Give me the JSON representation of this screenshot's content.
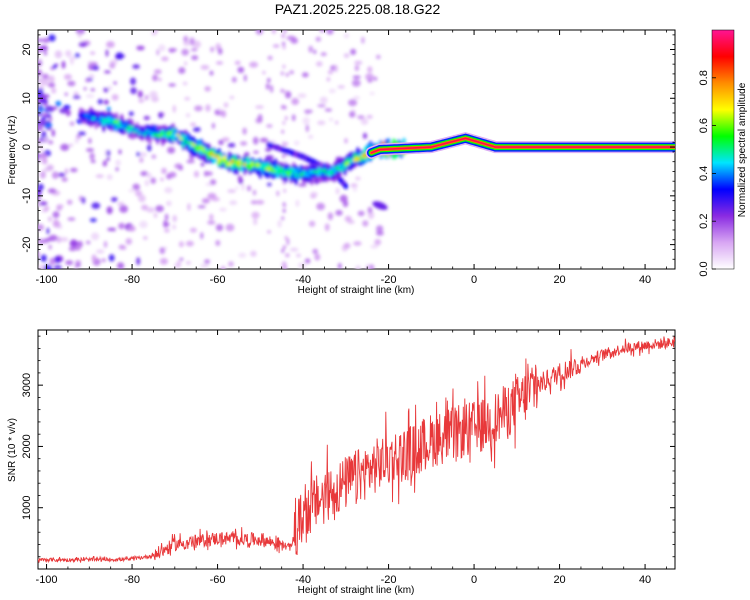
{
  "title": "PAZ1.2025.225.08.18.G22",
  "chart_data": [
    {
      "type": "heatmap",
      "xlabel": "Height of straight line (km)",
      "ylabel": "Frequency (Hz)",
      "xlim": [
        -102,
        47
      ],
      "ylim": [
        -25,
        24
      ],
      "xticks": [
        -100,
        -80,
        -60,
        -40,
        -20,
        0,
        20,
        40
      ],
      "yticks": [
        -20,
        -10,
        0,
        10,
        20
      ],
      "colorbar": {
        "label": "Normalized spectral amplitude",
        "range": [
          0,
          1
        ],
        "ticks": [
          "0.0",
          "0.2",
          "0.4",
          "0.6",
          "0.8"
        ],
        "colors": [
          "#ffffff",
          "#d8a6f3",
          "#8a2be2",
          "#0000ff",
          "#00e5ff",
          "#00ff00",
          "#ffff00",
          "#ff8c00",
          "#ff0000",
          "#ff1493"
        ]
      },
      "ridge": [
        {
          "x": -92,
          "f": 6.5,
          "a": 0.3
        },
        {
          "x": -84,
          "f": 5.0,
          "a": 0.45
        },
        {
          "x": -78,
          "f": 3.0,
          "a": 0.35
        },
        {
          "x": -70,
          "f": 2.5,
          "a": 0.5
        },
        {
          "x": -65,
          "f": 0.0,
          "a": 0.5
        },
        {
          "x": -58,
          "f": -3.0,
          "a": 0.6
        },
        {
          "x": -50,
          "f": -4.0,
          "a": 0.5
        },
        {
          "x": -42,
          "f": -5.5,
          "a": 0.45
        },
        {
          "x": -33,
          "f": -5.0,
          "a": 0.4
        },
        {
          "x": -28,
          "f": -2.5,
          "a": 0.5
        },
        {
          "x": -22,
          "f": -0.5,
          "a": 0.8
        },
        {
          "x": -10,
          "f": 0.0,
          "a": 0.85
        },
        {
          "x": -2,
          "f": 1.8,
          "a": 0.7
        },
        {
          "x": 5,
          "f": 0.0,
          "a": 0.85
        },
        {
          "x": 15,
          "f": 0.0,
          "a": 0.9
        },
        {
          "x": 47,
          "f": 0.0,
          "a": 1.0
        }
      ],
      "secondary_branch": [
        {
          "x": -48,
          "f": 0.5
        },
        {
          "x": -40,
          "f": -2.0
        },
        {
          "x": -33,
          "f": -5.0
        },
        {
          "x": -30,
          "f": -8.0
        }
      ],
      "isolated_feature": {
        "x": -22,
        "f": -12.0
      }
    },
    {
      "type": "line",
      "xlabel": "Height of straight line (km)",
      "ylabel": "SNR (10 * v/v)",
      "xlim": [
        -102,
        47
      ],
      "ylim": [
        0,
        3900
      ],
      "xticks": [
        -100,
        -80,
        -60,
        -40,
        -20,
        0,
        20,
        40
      ],
      "yticks": [
        1000,
        2000,
        3000
      ],
      "series": [
        {
          "color": "#e8383a",
          "x": [
            -102,
            -90,
            -80,
            -75,
            -70,
            -60,
            -50,
            -45,
            -43,
            -40,
            -35,
            -30,
            -25,
            -20,
            -15,
            -10,
            -5,
            0,
            5,
            10,
            15,
            20,
            25,
            30,
            35,
            40,
            47
          ],
          "y": [
            150,
            150,
            160,
            220,
            400,
            500,
            480,
            400,
            350,
            900,
            1200,
            1400,
            1600,
            1800,
            1900,
            2100,
            2200,
            2300,
            2450,
            2700,
            3000,
            3200,
            3350,
            3500,
            3600,
            3650,
            3700
          ]
        }
      ]
    }
  ]
}
